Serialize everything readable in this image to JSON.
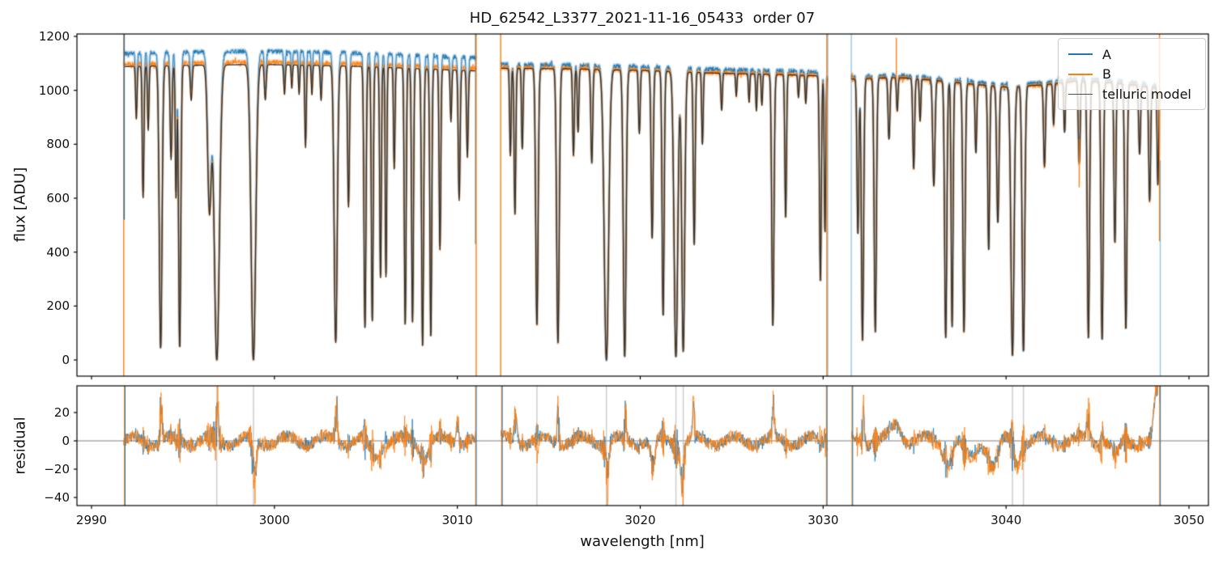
{
  "title": "HD_62542_L3377_2021-11-16_05433  order 07",
  "colors": {
    "series_a": "#1f77b4",
    "series_b": "#ff7f0e",
    "telluric": "#333333",
    "telluric_legend": "#4d4d4d",
    "band_a": "rgba(31,119,180,0.27)",
    "band_b": "rgba(255,127,14,0.27)",
    "edge_blue": "rgba(31,119,180,0.45)",
    "zero_line": "#808080",
    "masked_line": "rgba(180,180,180,0.65)",
    "spine": "#000000"
  },
  "legend": {
    "entries": [
      {
        "label": "A",
        "color": "#1f77b4",
        "line_width": 2
      },
      {
        "label": "B",
        "color": "#ff7f0e",
        "line_width": 2
      },
      {
        "label": "telluric model",
        "color": "#4d4d4d",
        "line_width": 1.5
      }
    ]
  },
  "axes": {
    "x": {
      "label": "wavelength [nm]",
      "ticks": [
        2990,
        3000,
        3010,
        3020,
        3030,
        3040,
        3050
      ],
      "lim": [
        2989.2,
        3051.1
      ]
    },
    "top": {
      "ylabel": "flux [ADU]",
      "ticks": [
        0,
        200,
        400,
        600,
        800,
        1000,
        1200
      ],
      "lim": [
        -60,
        1209
      ]
    },
    "bottom": {
      "ylabel": "residual",
      "ticks": [
        20,
        0,
        -20,
        -40
      ],
      "lim": [
        -45.7,
        38.9
      ]
    }
  },
  "chart_data": {
    "type": "line",
    "title": "HD_62542_L3377_2021-11-16_05433  order 07",
    "xlabel": "wavelength [nm]",
    "ylabel": "flux [ADU]",
    "ylabel_residual": "residual",
    "xlim": [
      2989.2,
      3051.1
    ],
    "ylim_top": [
      -60,
      1209
    ],
    "ylim_bottom": [
      -45.7,
      38.9
    ],
    "legend_position": "upper right",
    "grid": false,
    "series": [
      {
        "name": "A",
        "color": "#1f77b4",
        "style": "noisy spectrum with translucent error band",
        "continuum_scale_per_segment": [
          1.045,
          1.013,
          1.008
        ]
      },
      {
        "name": "B",
        "color": "#ff7f0e",
        "style": "noisy spectrum with translucent error band",
        "continuum_scale_per_segment": [
          1.008,
          1.002,
          1.0
        ]
      },
      {
        "name": "telluric model",
        "color": "#333333",
        "style": "smooth model line",
        "continuum_scale_per_segment": [
          1.0,
          1.0,
          1.0
        ]
      }
    ],
    "segments": [
      {
        "range": [
          2991.76,
          3011.03
        ],
        "continuum": [
          [
            2991.8,
            1088
          ],
          [
            2995,
            1092
          ],
          [
            2999,
            1096
          ],
          [
            3002,
            1093
          ],
          [
            3005,
            1088
          ],
          [
            3008,
            1080
          ],
          [
            3011,
            1072
          ]
        ],
        "lines": [
          [
            2992.45,
            0.18,
            0.04
          ],
          [
            2992.82,
            0.45,
            0.045
          ],
          [
            2993.1,
            0.22,
            0.04
          ],
          [
            2993.78,
            0.96,
            0.075
          ],
          [
            2994.35,
            0.32,
            0.05
          ],
          [
            2994.62,
            0.45,
            0.04
          ],
          [
            2994.82,
            0.96,
            0.06
          ],
          [
            2995.45,
            0.12,
            0.05
          ],
          [
            2996.45,
            0.5,
            0.1
          ],
          [
            2996.85,
            1.0,
            0.14
          ],
          [
            2998.85,
            1.0,
            0.125
          ],
          [
            2999.5,
            0.12,
            0.05
          ],
          [
            3000.55,
            0.1,
            0.04
          ],
          [
            3000.95,
            0.08,
            0.035
          ],
          [
            3001.35,
            0.1,
            0.035
          ],
          [
            3001.7,
            0.28,
            0.04
          ],
          [
            3002.05,
            0.1,
            0.035
          ],
          [
            3002.55,
            0.12,
            0.04
          ],
          [
            3003.35,
            0.94,
            0.085
          ],
          [
            3004.05,
            0.48,
            0.05
          ],
          [
            3004.95,
            0.89,
            0.055
          ],
          [
            3005.35,
            0.87,
            0.05
          ],
          [
            3005.8,
            0.72,
            0.045
          ],
          [
            3006.1,
            0.72,
            0.04
          ],
          [
            3006.55,
            0.35,
            0.04
          ],
          [
            3007.15,
            0.88,
            0.05
          ],
          [
            3007.55,
            0.87,
            0.05
          ],
          [
            3008.1,
            0.95,
            0.055
          ],
          [
            3008.55,
            0.92,
            0.05
          ],
          [
            3009.05,
            0.62,
            0.045
          ],
          [
            3009.65,
            0.18,
            0.04
          ],
          [
            3010.1,
            0.45,
            0.05
          ],
          [
            3010.55,
            0.3,
            0.045
          ]
        ]
      },
      {
        "range": [
          3012.38,
          3030.22
        ],
        "continuum": [
          [
            3012.4,
            1082
          ],
          [
            3016,
            1080
          ],
          [
            3020,
            1074
          ],
          [
            3024,
            1064
          ],
          [
            3028,
            1058
          ],
          [
            3030.2,
            1052
          ]
        ],
        "lines": [
          [
            3012.9,
            0.3,
            0.04
          ],
          [
            3013.15,
            0.5,
            0.045
          ],
          [
            3013.55,
            0.28,
            0.04
          ],
          [
            3014.35,
            0.88,
            0.065
          ],
          [
            3015.5,
            0.94,
            0.07
          ],
          [
            3016.35,
            0.3,
            0.045
          ],
          [
            3016.6,
            0.22,
            0.04
          ],
          [
            3017.35,
            0.32,
            0.05
          ],
          [
            3018.15,
            1.0,
            0.12
          ],
          [
            3019.15,
            0.99,
            0.075
          ],
          [
            3019.95,
            0.22,
            0.045
          ],
          [
            3020.65,
            0.58,
            0.055
          ],
          [
            3021.25,
            0.85,
            0.055
          ],
          [
            3021.95,
            0.99,
            0.1
          ],
          [
            3022.35,
            0.97,
            0.08
          ],
          [
            3022.95,
            0.6,
            0.05
          ],
          [
            3023.4,
            0.25,
            0.04
          ],
          [
            3024.45,
            0.13,
            0.04
          ],
          [
            3025.25,
            0.08,
            0.035
          ],
          [
            3025.95,
            0.1,
            0.035
          ],
          [
            3026.35,
            0.13,
            0.035
          ],
          [
            3026.65,
            0.11,
            0.035
          ],
          [
            3027.25,
            0.88,
            0.06
          ],
          [
            3027.95,
            0.5,
            0.045
          ],
          [
            3028.65,
            0.08,
            0.035
          ],
          [
            3029.05,
            0.1,
            0.035
          ],
          [
            3029.85,
            0.72,
            0.05
          ],
          [
            3030.1,
            0.55,
            0.04
          ]
        ]
      },
      {
        "range": [
          3031.55,
          3048.42
        ],
        "continuum": [
          [
            3031.6,
            1042
          ],
          [
            3034,
            1048
          ],
          [
            3036,
            1038
          ],
          [
            3038,
            1024
          ],
          [
            3040,
            1012
          ],
          [
            3042,
            1020
          ],
          [
            3044,
            1036
          ],
          [
            3046,
            1028
          ],
          [
            3048.4,
            1008
          ]
        ],
        "lines": [
          [
            3031.9,
            0.55,
            0.05
          ],
          [
            3032.15,
            0.93,
            0.06
          ],
          [
            3032.85,
            0.9,
            0.06
          ],
          [
            3033.6,
            0.22,
            0.05
          ],
          [
            3034.05,
            0.12,
            0.04
          ],
          [
            3034.95,
            0.32,
            0.05
          ],
          [
            3035.3,
            0.15,
            0.04
          ],
          [
            3036.05,
            0.38,
            0.06
          ],
          [
            3036.7,
            0.92,
            0.06
          ],
          [
            3037.05,
            0.88,
            0.05
          ],
          [
            3037.7,
            0.9,
            0.06
          ],
          [
            3038.35,
            0.25,
            0.045
          ],
          [
            3039.05,
            0.6,
            0.05
          ],
          [
            3039.55,
            0.5,
            0.06
          ],
          [
            3040.35,
            0.985,
            0.085
          ],
          [
            3040.95,
            0.97,
            0.07
          ],
          [
            3042.1,
            0.3,
            0.05
          ],
          [
            3042.6,
            0.15,
            0.04
          ],
          [
            3043.2,
            0.18,
            0.04
          ],
          [
            3044.0,
            0.3,
            0.05
          ],
          [
            3044.5,
            0.92,
            0.06
          ],
          [
            3045.25,
            0.93,
            0.06
          ],
          [
            3045.95,
            0.58,
            0.05
          ],
          [
            3046.55,
            0.89,
            0.06
          ],
          [
            3047.3,
            0.25,
            0.05
          ],
          [
            3047.85,
            0.42,
            0.05
          ],
          [
            3048.3,
            0.36,
            0.04
          ]
        ]
      }
    ],
    "spikes_top": [
      {
        "x": 2991.76,
        "color": "#ff7f0e",
        "f0": -60,
        "f1": 1209
      },
      {
        "x": 2991.79,
        "color": "#1f77b4",
        "f0": 520,
        "f1": 1209
      },
      {
        "x": 3011.0,
        "color": "#1f77b4",
        "f0": 430,
        "f1": 1209
      },
      {
        "x": 3011.03,
        "color": "#ff7f0e",
        "f0": -60,
        "f1": 1209
      },
      {
        "x": 3012.37,
        "color": "#ff7f0e",
        "f0": -60,
        "f1": 1209
      },
      {
        "x": 3030.2,
        "color": "#ff7f0e",
        "f0": -60,
        "f1": 1209
      },
      {
        "x": 3030.25,
        "color": "rgba(31,119,180,0.45)",
        "f0": -60,
        "f1": 1209
      },
      {
        "x": 3031.54,
        "color": "rgba(31,119,180,0.45)",
        "f0": -60,
        "f1": 1209
      },
      {
        "x": 3034.0,
        "color": "#ff7f0e",
        "f0": 1040,
        "f1": 1195
      },
      {
        "x": 3044.0,
        "color": "#ff7f0e",
        "f0": 640,
        "f1": 820
      },
      {
        "x": 3048.39,
        "color": "#ff7f0e",
        "f0": 440,
        "f1": 1209
      },
      {
        "x": 3048.43,
        "color": "rgba(31,119,180,0.45)",
        "f0": -60,
        "f1": 740
      }
    ],
    "spikes_bottom_x": [
      2991.8,
      3011.0,
      3012.42,
      3030.18,
      3031.58,
      3048.4
    ],
    "masked_lines_x": [
      2996.85,
      2998.85,
      3014.35,
      3018.15,
      3021.95,
      3022.35,
      3040.35,
      3040.95
    ],
    "residual": {
      "zero_line": 0,
      "noise_base": 4.0,
      "noise_line_scale": 14.0,
      "slow_wobble_amp": 6.0,
      "slow_wobble_period_nm": 2.1,
      "features": [
        [
          2993.8,
          20,
          0.06
        ],
        [
          2996.9,
          22,
          0.05
        ],
        [
          2998.9,
          -30,
          0.1
        ],
        [
          3003.4,
          22,
          0.05
        ],
        [
          3005.5,
          -10,
          0.3
        ],
        [
          3008.2,
          -12,
          0.2
        ],
        [
          3010.0,
          15,
          0.08
        ],
        [
          3013.2,
          15,
          0.08
        ],
        [
          3015.5,
          20,
          0.05
        ],
        [
          3018.2,
          -25,
          0.08
        ],
        [
          3019.2,
          18,
          0.05
        ],
        [
          3020.7,
          -20,
          0.12
        ],
        [
          3022.3,
          -25,
          0.1
        ],
        [
          3022.9,
          20,
          0.05
        ],
        [
          3027.3,
          18,
          0.05
        ],
        [
          3032.2,
          20,
          0.06
        ],
        [
          3034.0,
          10,
          0.3
        ],
        [
          3036.8,
          -15,
          0.2
        ],
        [
          3038.0,
          -12,
          0.3
        ],
        [
          3039.3,
          -18,
          0.25
        ],
        [
          3040.6,
          -15,
          0.15
        ],
        [
          3044.5,
          15,
          0.08
        ],
        [
          3046.0,
          -12,
          0.2
        ],
        [
          3048.2,
          30,
          0.12
        ],
        [
          3048.35,
          35,
          0.05
        ]
      ]
    }
  }
}
